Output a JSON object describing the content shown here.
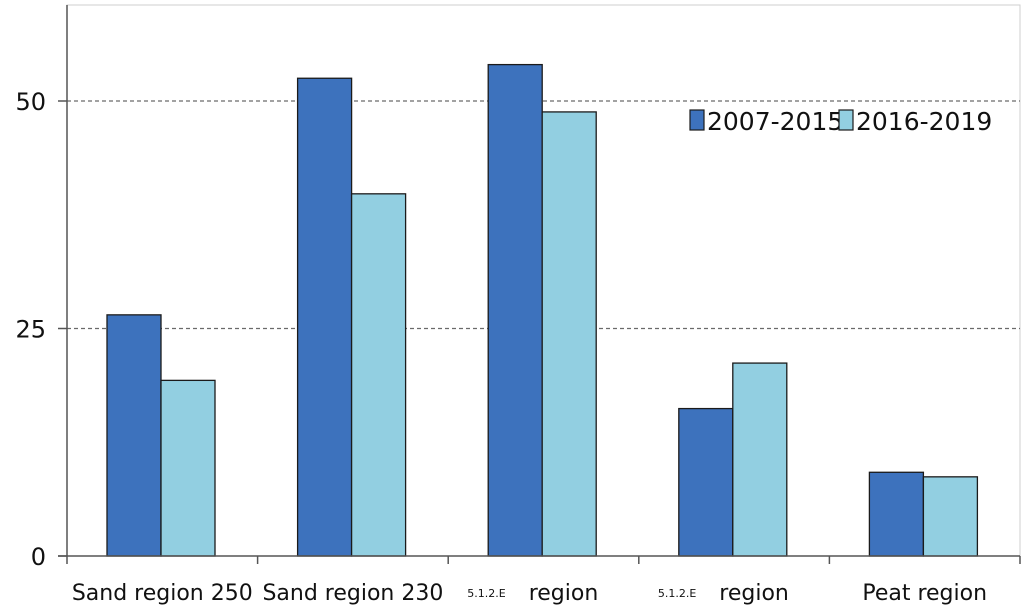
{
  "chart_data": {
    "type": "bar",
    "categories": [
      "Sand region 250",
      "Sand region 230",
      "5.1.2.E region",
      "5.1.2.E region",
      "Peat region"
    ],
    "category_labels": [
      {
        "prefix": "",
        "main": "Sand region 250"
      },
      {
        "prefix": "",
        "main": "Sand region 230"
      },
      {
        "prefix": "5.1.2.E",
        "main": "region"
      },
      {
        "prefix": "5.1.2.E",
        "main": "region"
      },
      {
        "prefix": "",
        "main": "Peat region"
      }
    ],
    "series": [
      {
        "name": "2007-2015",
        "values": [
          26.5,
          52.5,
          54.0,
          16.2,
          9.2
        ]
      },
      {
        "name": "2016-2019",
        "values": [
          19.3,
          39.8,
          48.8,
          21.2,
          8.7
        ]
      }
    ],
    "yticks": [
      0,
      25,
      50
    ],
    "ylim": [
      0,
      60
    ],
    "grid": true,
    "legend": "top-right",
    "colors": {
      "2007-2015": "#3d72bd",
      "2016-2019": "#92cfe1",
      "outline": "#1b1b1b",
      "gridline": "#6a6a6a",
      "axis": "#555555"
    }
  }
}
